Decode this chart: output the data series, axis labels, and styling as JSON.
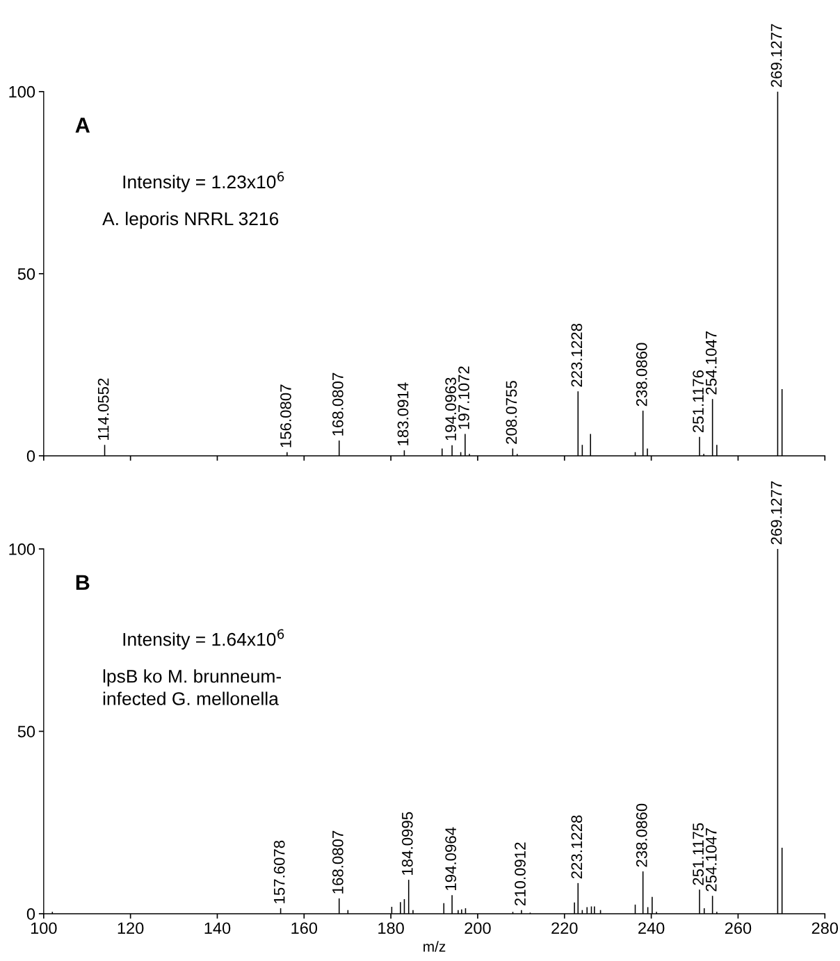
{
  "chart_data": [
    {
      "type": "bar",
      "xlim": [
        100,
        280
      ],
      "xticks": [
        100,
        120,
        140,
        160,
        180,
        200,
        220,
        240,
        260,
        280
      ],
      "ylim": [
        0,
        100
      ],
      "yticks": [
        0,
        50,
        100
      ],
      "tick_labels": "y",
      "grid": false,
      "legend": false,
      "series": [
        {
          "color": "#000000",
          "x": [
            114.0552,
            156.0807,
            168.0807,
            183.0914,
            191.8,
            194.0963,
            196.1,
            197.1072,
            198.1,
            208.0755,
            209.1,
            223.1228,
            224.1,
            226.0,
            236.3,
            238.086,
            239.1,
            251.1176,
            252.1,
            254.1047,
            255.1,
            269.1277,
            270.13
          ],
          "values": [
            3.0,
            1.0,
            4.2,
            1.5,
            2.0,
            2.9,
            1.0,
            6.0,
            0.5,
            2.0,
            0.5,
            17.7,
            3.0,
            6.0,
            1.0,
            12.4,
            2.0,
            5.2,
            0.5,
            15.6,
            3.0,
            100,
            18.3
          ]
        }
      ],
      "annotations": [
        {
          "text": "114.0552",
          "x": 114.0552,
          "y": 3.0
        },
        {
          "text": "156.0807",
          "x": 156.0807,
          "y": 1.0
        },
        {
          "text": "168.0807",
          "x": 168.0807,
          "y": 4.2
        },
        {
          "text": "183.0914",
          "x": 183.0914,
          "y": 1.5
        },
        {
          "text": "194.0963",
          "x": 194.0963,
          "y": 2.9
        },
        {
          "text": "197.1072",
          "x": 197.1072,
          "y": 6.0
        },
        {
          "text": "208.0755",
          "x": 208.0755,
          "y": 2.0
        },
        {
          "text": "223.1228",
          "x": 223.1228,
          "y": 17.7
        },
        {
          "text": "238.0860",
          "x": 238.086,
          "y": 12.4
        },
        {
          "text": "251.1176",
          "x": 251.1176,
          "y": 5.2
        },
        {
          "text": "254.1047",
          "x": 254.1047,
          "y": 15.6
        },
        {
          "text": "269.1277",
          "x": 269.1277,
          "y": 100
        },
        "A",
        "Intensity = 1.23x10$^{6}$",
        "A. leporis NRRL 3216"
      ]
    },
    {
      "type": "bar",
      "xlabel": "m/z",
      "xlim": [
        100,
        280
      ],
      "xticks": [
        100,
        120,
        140,
        160,
        180,
        200,
        220,
        240,
        260,
        280
      ],
      "ylim": [
        0,
        100
      ],
      "yticks": [
        0,
        50,
        100
      ],
      "grid": false,
      "legend": false,
      "series": [
        {
          "color": "#000000",
          "x": [
            102.0,
            154.6,
            168.0807,
            170.1,
            180.2,
            182.2,
            183.1,
            184.0995,
            185.1,
            192.2,
            194.0964,
            195.5,
            196.3,
            197.2,
            208.1,
            210.0912,
            212.1,
            222.3,
            223.1228,
            224.1,
            225.2,
            226.2,
            226.9,
            228.3,
            236.3,
            238.086,
            239.2,
            240.2,
            241.2,
            251.1175,
            252.2,
            254.1047,
            255.1,
            269.1277,
            270.13
          ],
          "values": [
            0.5,
            1.5,
            4.2,
            1.0,
            1.9,
            3.2,
            4.0,
            9.3,
            1.0,
            2.9,
            5.1,
            1.0,
            1.2,
            1.5,
            0.5,
            1.0,
            0.3,
            3.1,
            8.4,
            1.0,
            1.8,
            2.0,
            2.0,
            1.0,
            2.5,
            11.6,
            1.8,
            4.6,
            0.5,
            6.6,
            1.5,
            4.9,
            0.5,
            100,
            18.1
          ]
        }
      ],
      "annotations": [
        {
          "text": "157.6078",
          "x": 154.6,
          "y": 1.5
        },
        {
          "text": "168.0807",
          "x": 168.0807,
          "y": 4.2
        },
        {
          "text": "184.0995",
          "x": 184.0995,
          "y": 9.3
        },
        {
          "text": "194.0964",
          "x": 194.0964,
          "y": 5.1
        },
        {
          "text": "210.0912",
          "x": 210.0912,
          "y": 1.0
        },
        {
          "text": "223.1228",
          "x": 223.1228,
          "y": 8.4
        },
        {
          "text": "238.0860",
          "x": 238.086,
          "y": 11.6
        },
        {
          "text": "251.1175",
          "x": 251.1175,
          "y": 6.6
        },
        {
          "text": "254.1047",
          "x": 254.1047,
          "y": 4.9
        },
        {
          "text": "269.1277",
          "x": 269.1277,
          "y": 100
        },
        "B",
        "Intensity = 1.64x10$^{6}$",
        "lpsB ko M. brunneum-\ninfected G. mellonella"
      ]
    }
  ]
}
